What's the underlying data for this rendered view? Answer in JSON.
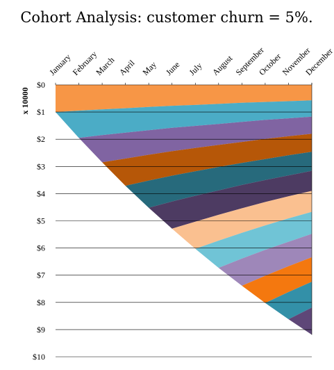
{
  "chart_data": {
    "type": "area",
    "title": "Cohort Analysis: customer churn = 5%.",
    "ylabel": "x 10000",
    "xlabel": "",
    "y_ticks": [
      "$0",
      "$1",
      "$2",
      "$3",
      "$4",
      "$5",
      "$6",
      "$7",
      "$8",
      "$9",
      "$10"
    ],
    "ylim": [
      0,
      10
    ],
    "y_inverted": true,
    "stacked": true,
    "churn_rate": 0.05,
    "categories": [
      "January",
      "February",
      "March",
      "April",
      "May",
      "June",
      "July",
      "August",
      "September",
      "October",
      "November",
      "December"
    ],
    "series": [
      {
        "color": "#f79646",
        "values": [
          1.0,
          0.95,
          0.9,
          0.86,
          0.81,
          0.77,
          0.74,
          0.7,
          0.66,
          0.63,
          0.6,
          0.57
        ]
      },
      {
        "color": "#4bacc6",
        "values": [
          0.0,
          1.0,
          0.95,
          0.9,
          0.86,
          0.81,
          0.77,
          0.74,
          0.7,
          0.66,
          0.63,
          0.6
        ]
      },
      {
        "color": "#8064a2",
        "values": [
          0.0,
          0.0,
          1.0,
          0.95,
          0.9,
          0.86,
          0.81,
          0.77,
          0.74,
          0.7,
          0.66,
          0.63
        ]
      },
      {
        "color": "#b65708",
        "values": [
          0.0,
          0.0,
          0.0,
          1.0,
          0.95,
          0.9,
          0.86,
          0.81,
          0.77,
          0.74,
          0.7,
          0.66
        ]
      },
      {
        "color": "#276a7c",
        "values": [
          0.0,
          0.0,
          0.0,
          0.0,
          1.0,
          0.95,
          0.9,
          0.86,
          0.81,
          0.77,
          0.74,
          0.7
        ]
      },
      {
        "color": "#4d3b62",
        "values": [
          0.0,
          0.0,
          0.0,
          0.0,
          0.0,
          1.0,
          0.95,
          0.9,
          0.86,
          0.81,
          0.77,
          0.74
        ]
      },
      {
        "color": "#fac090",
        "values": [
          0.0,
          0.0,
          0.0,
          0.0,
          0.0,
          0.0,
          1.0,
          0.95,
          0.9,
          0.86,
          0.81,
          0.77
        ]
      },
      {
        "color": "#70c4d6",
        "values": [
          0.0,
          0.0,
          0.0,
          0.0,
          0.0,
          0.0,
          0.0,
          1.0,
          0.95,
          0.9,
          0.86,
          0.81
        ]
      },
      {
        "color": "#9e87b9",
        "values": [
          0.0,
          0.0,
          0.0,
          0.0,
          0.0,
          0.0,
          0.0,
          0.0,
          1.0,
          0.95,
          0.9,
          0.86
        ]
      },
      {
        "color": "#f4780f",
        "values": [
          0.0,
          0.0,
          0.0,
          0.0,
          0.0,
          0.0,
          0.0,
          0.0,
          0.0,
          1.0,
          0.95,
          0.9
        ]
      },
      {
        "color": "#3390a8",
        "values": [
          0.0,
          0.0,
          0.0,
          0.0,
          0.0,
          0.0,
          0.0,
          0.0,
          0.0,
          0.0,
          1.0,
          0.95
        ]
      },
      {
        "color": "#5e4778",
        "values": [
          0.0,
          0.0,
          0.0,
          0.0,
          0.0,
          0.0,
          0.0,
          0.0,
          0.0,
          0.0,
          0.0,
          1.0
        ]
      }
    ],
    "grid": true,
    "legend": "none"
  }
}
